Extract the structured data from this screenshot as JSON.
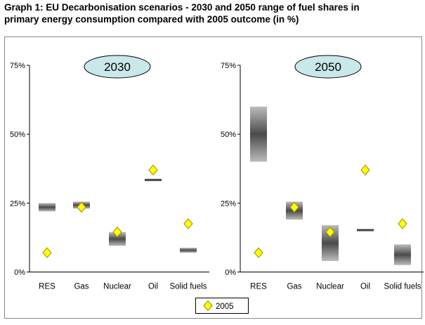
{
  "title_lines": [
    "Graph 1: EU Decarbonisation scenarios - 2030 and 2050 range of fuel shares in",
    "primary energy consumption compared with 2005 outcome (in %)"
  ],
  "colors": {
    "range_bar": "#4a4a4a",
    "range_bar_light": "#bcbcbc",
    "marker_fill": "#ffff00",
    "marker_stroke": "#9c8a00",
    "badge_fill": "#c8e8ea",
    "frame": "#888888"
  },
  "chart_data": [
    {
      "type": "floating-bar-with-markers",
      "badge": "2030",
      "categories": [
        "RES",
        "Gas",
        "Nuclear",
        "Oil",
        "Solid fuels"
      ],
      "y_ticks": [
        "0%",
        "25%",
        "50%",
        "75%"
      ],
      "ylim": [
        0,
        75
      ],
      "grid": false,
      "legend_position": "bottom",
      "series": [
        {
          "name": "",
          "kind": "range",
          "values": [
            [
              22,
              25
            ],
            [
              23,
              25.5
            ],
            [
              9.5,
              14.5
            ],
            [
              33,
              33.8
            ],
            [
              7,
              8.8
            ]
          ]
        },
        {
          "name": "2005",
          "kind": "marker",
          "values": [
            7,
            23.5,
            14.5,
            37,
            17.5
          ]
        }
      ]
    },
    {
      "type": "floating-bar-with-markers",
      "badge": "2050",
      "categories": [
        "RES",
        "Gas",
        "Nuclear",
        "Oil",
        "Solid fuels"
      ],
      "y_ticks": [
        "0%",
        "25%",
        "50%",
        "75%"
      ],
      "ylim": [
        0,
        75
      ],
      "grid": false,
      "legend_position": "bottom",
      "series": [
        {
          "name": "",
          "kind": "range",
          "values": [
            [
              40,
              60
            ],
            [
              19,
              25.5
            ],
            [
              4,
              17
            ],
            [
              14.8,
              15.6
            ],
            [
              2.5,
              10
            ]
          ]
        },
        {
          "name": "2005",
          "kind": "marker",
          "values": [
            7,
            23.5,
            14.5,
            37,
            17.5
          ]
        }
      ]
    }
  ],
  "legend": {
    "label": "2005"
  }
}
